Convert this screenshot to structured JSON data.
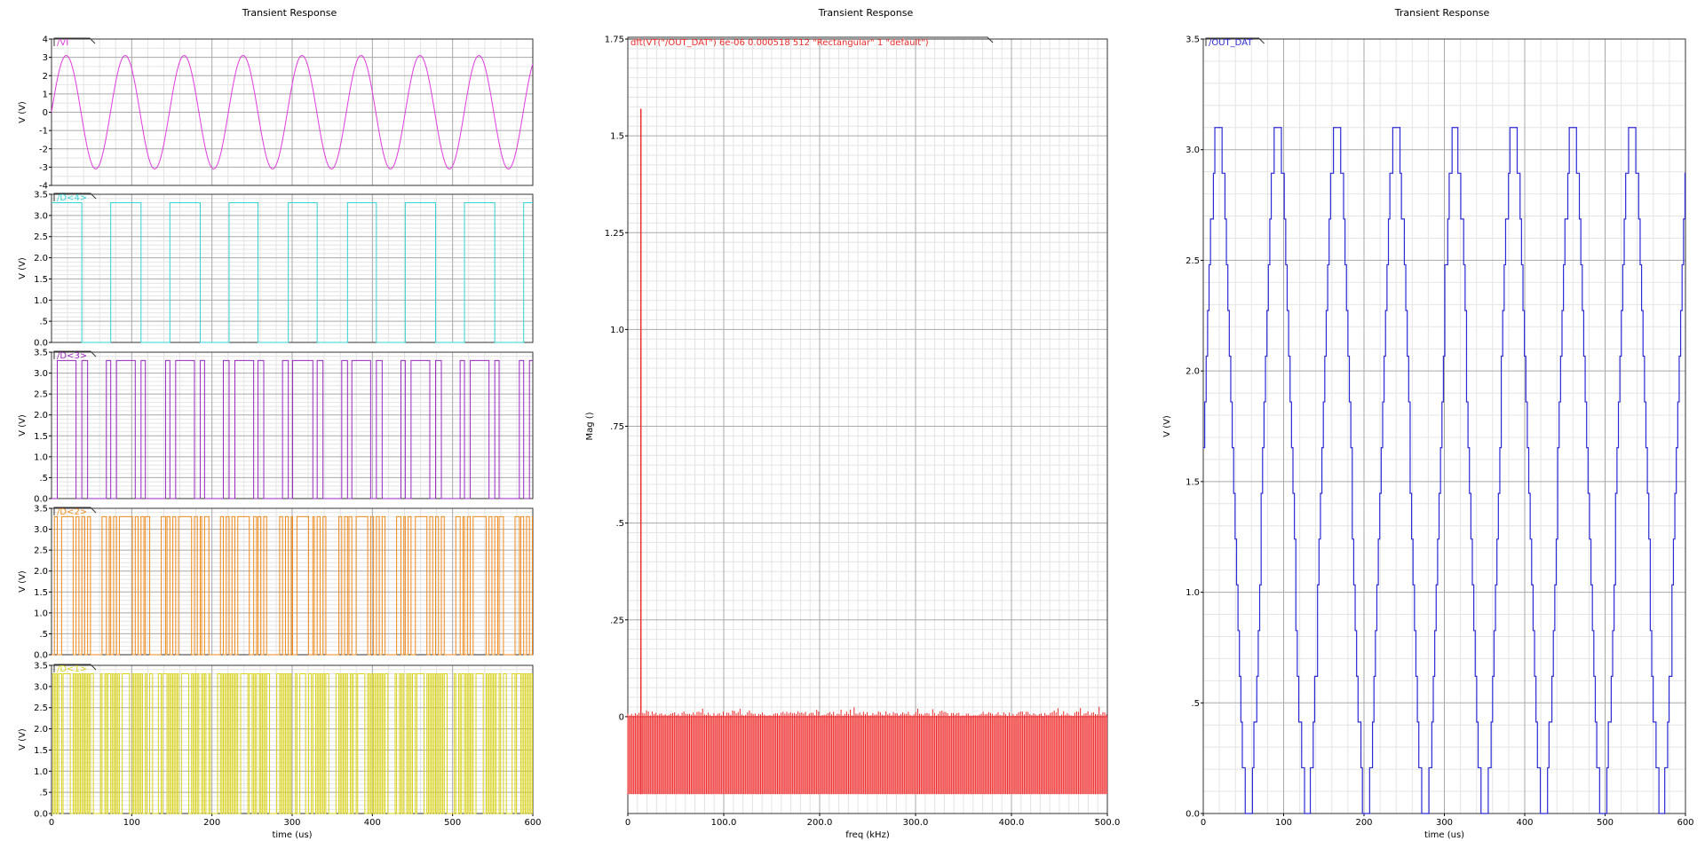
{
  "chart_data": [
    {
      "type": "line",
      "title": "Transient Response",
      "xlabel": "time (us)",
      "xlim": [
        0,
        600
      ],
      "xticks": [
        0,
        100,
        200,
        300,
        400,
        500,
        600
      ],
      "xtick_labels": [
        "0",
        "100",
        "200",
        "300",
        "400",
        "500",
        "600"
      ],
      "subplots": [
        {
          "ylabel": "V (V)",
          "ylim": [
            -4,
            4
          ],
          "yticks": [
            -4,
            -3,
            -2,
            -1,
            0,
            1,
            2,
            3,
            4
          ],
          "ytick_labels": [
            "-4",
            "-3",
            "-2",
            "-1",
            "0",
            "1",
            "2",
            "3",
            "4"
          ],
          "series": [
            {
              "name": "/VI",
              "color": "#e23be0",
              "kind": "sine",
              "amplitude": 3.1,
              "period_us": 73.5,
              "offset": 0
            }
          ]
        },
        {
          "ylabel": "V (V)",
          "ylim": [
            0,
            3.5
          ],
          "yticks": [
            0,
            0.5,
            1.0,
            1.5,
            2.0,
            2.5,
            3.0,
            3.5
          ],
          "ytick_labels": [
            "0.0",
            ".5",
            "1.0",
            "1.5",
            "2.0",
            "2.5",
            "3.0",
            "3.5"
          ],
          "series": [
            {
              "name": "/D<4>",
              "color": "#35d2d6",
              "kind": "bit",
              "bit": 4,
              "high": 3.3
            }
          ]
        },
        {
          "ylabel": "V (V)",
          "ylim": [
            0,
            3.5
          ],
          "yticks": [
            0,
            0.5,
            1.0,
            1.5,
            2.0,
            2.5,
            3.0,
            3.5
          ],
          "ytick_labels": [
            "0.0",
            ".5",
            "1.0",
            "1.5",
            "2.0",
            "2.5",
            "3.0",
            "3.5"
          ],
          "series": [
            {
              "name": "/D<3>",
              "color": "#9a29c2",
              "kind": "bit",
              "bit": 3,
              "high": 3.3
            }
          ]
        },
        {
          "ylabel": "V (V)",
          "ylim": [
            0,
            3.5
          ],
          "yticks": [
            0,
            0.5,
            1.0,
            1.5,
            2.0,
            2.5,
            3.0,
            3.5
          ],
          "ytick_labels": [
            "0.0",
            ".5",
            "1.0",
            "1.5",
            "2.0",
            "2.5",
            "3.0",
            "3.5"
          ],
          "series": [
            {
              "name": "/D<2>",
              "color": "#f08a1c",
              "kind": "bit",
              "bit": 2,
              "high": 3.3
            }
          ]
        },
        {
          "ylabel": "V (V)",
          "ylim": [
            0,
            3.5
          ],
          "yticks": [
            0,
            0.5,
            1.0,
            1.5,
            2.0,
            2.5,
            3.0,
            3.5
          ],
          "ytick_labels": [
            "0.0",
            ".5",
            "1.0",
            "1.5",
            "2.0",
            "2.5",
            "3.0",
            "3.5"
          ],
          "series": [
            {
              "name": "/D<1>",
              "color": "#d9d31c",
              "kind": "bit",
              "bit": 1,
              "high": 3.3
            }
          ]
        }
      ],
      "signal": {
        "sample_period_us": 1.8,
        "adc_bits": 4,
        "full_scale": 3.1
      }
    },
    {
      "type": "line",
      "title": "Transient Response",
      "xlabel": "freq (kHz)",
      "ylabel": "Mag ()",
      "xlim": [
        0,
        500
      ],
      "ylim": [
        -0.25,
        1.75
      ],
      "xticks": [
        0,
        100,
        200,
        300,
        400,
        500
      ],
      "xtick_labels": [
        "0",
        "100.0",
        "200.0",
        "300.0",
        "400.0",
        "500.0"
      ],
      "yticks": [
        0,
        0.25,
        0.5,
        0.75,
        1.0,
        1.25,
        1.5,
        1.75
      ],
      "ytick_labels": [
        "0",
        ".25",
        ".5",
        ".75",
        "1.0",
        "1.25",
        "1.5",
        "1.75"
      ],
      "series": [
        {
          "name": "dft(VT(\"/OUT_DAT\") 6e-06 0.000518 512 \"Rectangular\" 1 \"default\")",
          "color": "#ee2b2b",
          "peak": {
            "freq_khz": 13.6,
            "mag": 1.57
          },
          "noise_floor_band": [
            -0.2,
            0.0
          ]
        }
      ]
    },
    {
      "type": "line",
      "title": "Transient Response",
      "xlabel": "time (us)",
      "ylabel": "V (V)",
      "xlim": [
        0,
        600
      ],
      "ylim": [
        0,
        3.5
      ],
      "xticks": [
        0,
        100,
        200,
        300,
        400,
        500,
        600
      ],
      "xtick_labels": [
        "0",
        "100",
        "200",
        "300",
        "400",
        "500",
        "600"
      ],
      "yticks": [
        0,
        0.5,
        1.0,
        1.5,
        2.0,
        2.5,
        3.0,
        3.5
      ],
      "ytick_labels": [
        "0.0",
        ".5",
        "1.0",
        "1.5",
        "2.0",
        "2.5",
        "3.0",
        "3.5"
      ],
      "series": [
        {
          "name": "/OUT_DAT",
          "color": "#2b2bd6",
          "kind": "dac",
          "levels": 16,
          "vmax": 3.1,
          "period_us": 73.5
        }
      ]
    }
  ]
}
